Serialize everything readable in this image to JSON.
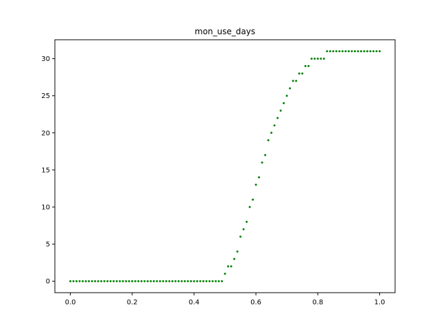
{
  "chart_data": {
    "type": "scatter",
    "title": "mon_use_days",
    "xlabel": "",
    "ylabel": "",
    "xlim": [
      -0.05,
      1.05
    ],
    "ylim": [
      -1.55,
      32.55
    ],
    "xticks": [
      0.0,
      0.2,
      0.4,
      0.6,
      0.8,
      1.0
    ],
    "xtick_labels": [
      "0.0",
      "0.2",
      "0.4",
      "0.6",
      "0.8",
      "1.0"
    ],
    "yticks": [
      0,
      5,
      10,
      15,
      20,
      25,
      30
    ],
    "ytick_labels": [
      "0",
      "5",
      "10",
      "15",
      "20",
      "25",
      "30"
    ],
    "grid": false,
    "legend": "none",
    "color": "#008000",
    "series": [
      {
        "x": [
          0.0,
          0.01,
          0.02,
          0.03,
          0.04,
          0.05,
          0.06,
          0.07,
          0.08,
          0.09,
          0.1,
          0.11,
          0.12,
          0.13,
          0.14,
          0.15,
          0.16,
          0.17,
          0.18,
          0.19,
          0.2,
          0.21,
          0.22,
          0.23,
          0.24,
          0.25,
          0.26,
          0.27,
          0.28,
          0.29,
          0.3,
          0.31,
          0.32,
          0.33,
          0.34,
          0.35,
          0.36,
          0.37,
          0.38,
          0.39,
          0.4,
          0.41,
          0.42,
          0.43,
          0.44,
          0.45,
          0.46,
          0.47,
          0.48,
          0.49,
          0.5,
          0.51,
          0.52,
          0.53,
          0.54,
          0.55,
          0.56,
          0.57,
          0.58,
          0.59,
          0.6,
          0.61,
          0.62,
          0.63,
          0.64,
          0.65,
          0.66,
          0.67,
          0.68,
          0.69,
          0.7,
          0.71,
          0.72,
          0.73,
          0.74,
          0.75,
          0.76,
          0.77,
          0.78,
          0.79,
          0.8,
          0.81,
          0.82,
          0.83,
          0.84,
          0.85,
          0.86,
          0.87,
          0.88,
          0.89,
          0.9,
          0.91,
          0.92,
          0.93,
          0.94,
          0.95,
          0.96,
          0.97,
          0.98,
          0.99,
          1.0
        ],
        "y": [
          0,
          0,
          0,
          0,
          0,
          0,
          0,
          0,
          0,
          0,
          0,
          0,
          0,
          0,
          0,
          0,
          0,
          0,
          0,
          0,
          0,
          0,
          0,
          0,
          0,
          0,
          0,
          0,
          0,
          0,
          0,
          0,
          0,
          0,
          0,
          0,
          0,
          0,
          0,
          0,
          0,
          0,
          0,
          0,
          0,
          0,
          0,
          0,
          0,
          0,
          1,
          2,
          2,
          3,
          4,
          6,
          7,
          8,
          10,
          11,
          13,
          14,
          16,
          17,
          19,
          20,
          21,
          22,
          23,
          24,
          25,
          26,
          27,
          27,
          28,
          28,
          29,
          29,
          30,
          30,
          30,
          30,
          30,
          31,
          31,
          31,
          31,
          31,
          31,
          31,
          31,
          31,
          31,
          31,
          31,
          31,
          31,
          31,
          31,
          31,
          31
        ]
      }
    ]
  }
}
